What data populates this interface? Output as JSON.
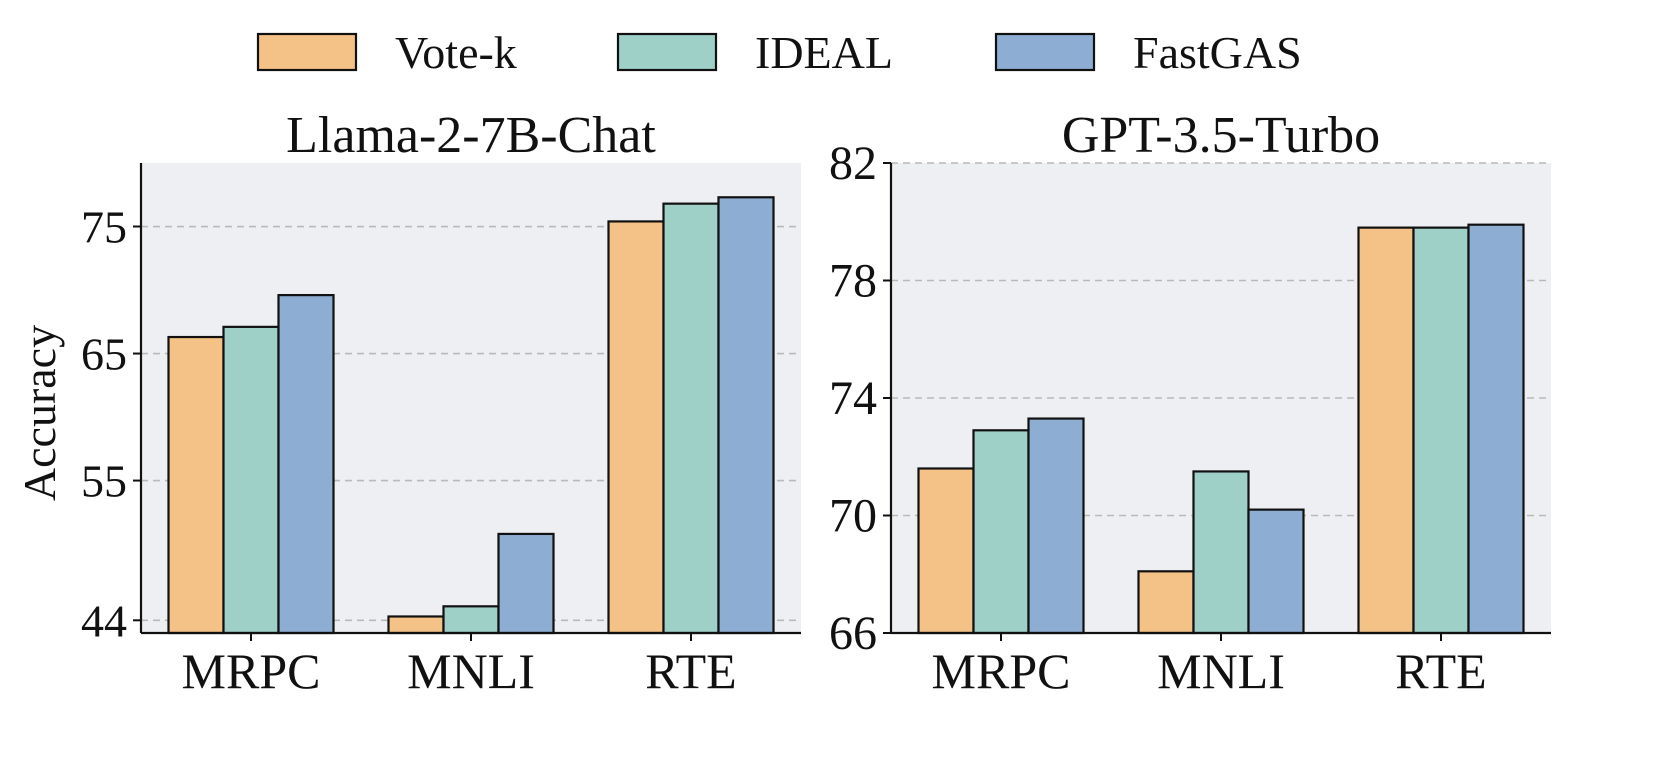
{
  "legend": {
    "placement": "top-center",
    "items": [
      {
        "label": "Vote-k",
        "color": "#f4c186"
      },
      {
        "label": "IDEAL",
        "color": "#9fd0c8"
      },
      {
        "label": "FastGAS",
        "color": "#8daed2"
      }
    ]
  },
  "chart_data": [
    {
      "type": "bar",
      "title": "Llama-2-7B-Chat",
      "xlabel": "",
      "ylabel": "Accuracy",
      "categories": [
        "MRPC",
        "MNLI",
        "RTE"
      ],
      "ylim": [
        43,
        80
      ],
      "yticks": [
        44,
        55,
        65,
        75
      ],
      "ytick_labels": [
        "44",
        "55",
        "65",
        "75"
      ],
      "grid": true,
      "series": [
        {
          "name": "Vote-k",
          "values": [
            66.3,
            44.3,
            75.4
          ]
        },
        {
          "name": "IDEAL",
          "values": [
            67.1,
            45.1,
            76.8
          ]
        },
        {
          "name": "FastGAS",
          "values": [
            69.6,
            50.8,
            77.3
          ]
        }
      ]
    },
    {
      "type": "bar",
      "title": "GPT-3.5-Turbo",
      "xlabel": "",
      "ylabel": "",
      "categories": [
        "MRPC",
        "MNLI",
        "RTE"
      ],
      "ylim": [
        66,
        82
      ],
      "yticks": [
        66,
        70,
        74,
        78,
        82
      ],
      "ytick_labels": [
        "66",
        "70",
        "74",
        "78",
        "82"
      ],
      "grid": true,
      "series": [
        {
          "name": "Vote-k",
          "values": [
            71.6,
            68.1,
            79.8
          ]
        },
        {
          "name": "IDEAL",
          "values": [
            72.9,
            71.5,
            79.8
          ]
        },
        {
          "name": "FastGAS",
          "values": [
            73.3,
            70.2,
            79.9
          ]
        }
      ]
    }
  ],
  "colors": {
    "panel_background": "#eeeff2",
    "grid": "#b9b9b9",
    "bar_edge": "#111111"
  }
}
